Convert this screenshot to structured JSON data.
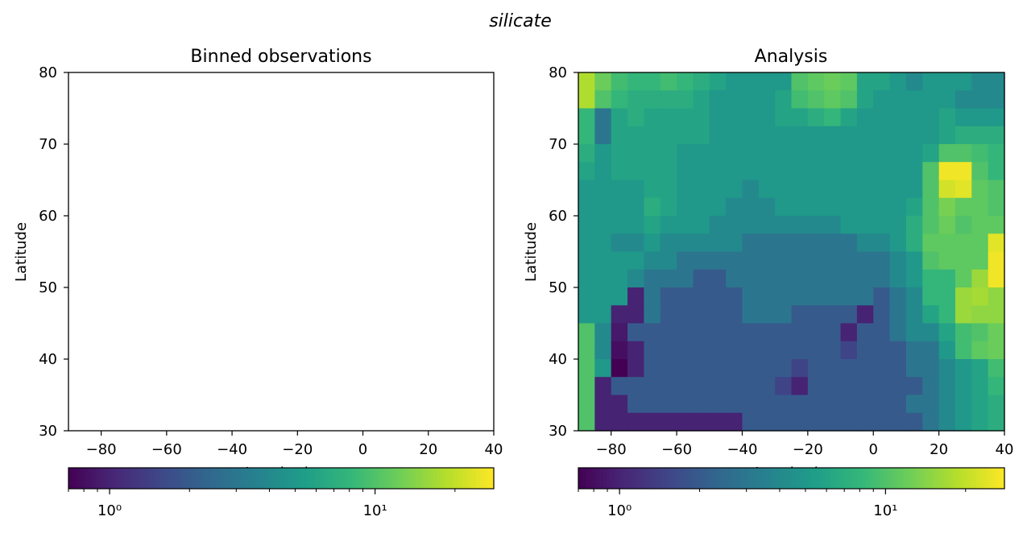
{
  "suptitle": "silicate",
  "colors": {
    "viridis": [
      "#440154",
      "#482878",
      "#3e4989",
      "#31688e",
      "#26828e",
      "#1f9e89",
      "#35b779",
      "#6ece58",
      "#b5de2b",
      "#fde725"
    ],
    "frame": "#000000"
  },
  "chart_data": [
    {
      "type": "heatmap",
      "title": "Binned observations",
      "xlabel": "Longitude",
      "ylabel": "Latitude",
      "xlim": [
        -90,
        40
      ],
      "ylim": [
        30,
        80
      ],
      "xticks": [
        -80,
        -60,
        -40,
        -20,
        0,
        20,
        40
      ],
      "xtick_labels": [
        "−80",
        "−60",
        "−40",
        "−20",
        "0",
        "20",
        "40"
      ],
      "yticks": [
        30,
        40,
        50,
        60,
        70,
        80
      ],
      "ytick_labels": [
        "30",
        "40",
        "50",
        "60",
        "70",
        "80"
      ],
      "empty": true,
      "colorbar": {
        "scale": "log",
        "cmap": "viridis",
        "range": [
          0.7,
          28
        ],
        "major_ticks": [
          1,
          10
        ],
        "tick_labels": [
          "10⁰",
          "10¹"
        ]
      }
    },
    {
      "type": "heatmap",
      "title": "Analysis",
      "xlabel": "Longitude",
      "ylabel": "Latitude",
      "xlim": [
        -90,
        40
      ],
      "ylim": [
        30,
        80
      ],
      "xticks": [
        -80,
        -60,
        -40,
        -20,
        0,
        20,
        40
      ],
      "xtick_labels": [
        "−80",
        "−60",
        "−40",
        "−20",
        "0",
        "20",
        "40"
      ],
      "yticks": [
        30,
        40,
        50,
        60,
        70,
        80
      ],
      "ytick_labels": [
        "30",
        "40",
        "50",
        "60",
        "70",
        "80"
      ],
      "grid_lon_centers": [
        -87.5,
        -82.5,
        -77.5,
        -72.5,
        -67.5,
        -62.5,
        -57.5,
        -52.5,
        -47.5,
        -42.5,
        -37.5,
        -32.5,
        -27.5,
        -22.5,
        -17.5,
        -12.5,
        -7.5,
        -2.5,
        2.5,
        7.5,
        12.5,
        17.5,
        22.5,
        27.5,
        32.5,
        37.5
      ],
      "grid_lat_centers": [
        78.75,
        76.25,
        73.75,
        71.25,
        68.75,
        66.25,
        63.75,
        61.25,
        58.75,
        56.25,
        53.75,
        51.25,
        48.75,
        46.25,
        43.75,
        41.25,
        38.75,
        36.25,
        33.75,
        31.25
      ],
      "z": [
        [
          18,
          12,
          9,
          8,
          8,
          9,
          8,
          7,
          6,
          5,
          5,
          5,
          5,
          10,
          11,
          12,
          11,
          6,
          6,
          5,
          4,
          5,
          5,
          5,
          4,
          4
        ],
        [
          18,
          10,
          8,
          7,
          7,
          7,
          7,
          6,
          5,
          5,
          5,
          5,
          6,
          9,
          10,
          11,
          10,
          6,
          5,
          5,
          5,
          5,
          5,
          4,
          4,
          4
        ],
        [
          8,
          3,
          6,
          7,
          6,
          6,
          6,
          6,
          5,
          5,
          5,
          5,
          6,
          6,
          7,
          8,
          6,
          5,
          5,
          5,
          5,
          5,
          6,
          5,
          5,
          5
        ],
        [
          8,
          3,
          6,
          6,
          6,
          6,
          6,
          6,
          5,
          5,
          5,
          5,
          5,
          5,
          5,
          5,
          5,
          5,
          5,
          5,
          5,
          5,
          6,
          7,
          7,
          7
        ],
        [
          7,
          5,
          6,
          6,
          6,
          6,
          5,
          5,
          5,
          5,
          5,
          5,
          5,
          5,
          5,
          5,
          5,
          5,
          5,
          5,
          5,
          6,
          10,
          10,
          9,
          8
        ],
        [
          6,
          5,
          6,
          6,
          6,
          6,
          5,
          5,
          5,
          5,
          5,
          5,
          5,
          5,
          5,
          5,
          5,
          5,
          5,
          5,
          5,
          10,
          26,
          26,
          10,
          8
        ],
        [
          5,
          5,
          5,
          5,
          6,
          6,
          5,
          5,
          5,
          5,
          4,
          5,
          5,
          5,
          5,
          5,
          5,
          5,
          5,
          5,
          5,
          10,
          22,
          24,
          11,
          10
        ],
        [
          5,
          5,
          5,
          5,
          7,
          6,
          5,
          5,
          5,
          4,
          4,
          4,
          5,
          5,
          5,
          5,
          5,
          5,
          5,
          5,
          6,
          10,
          13,
          11,
          11,
          10
        ],
        [
          5,
          5,
          5,
          5,
          6,
          5,
          5,
          5,
          4,
          4,
          4,
          4,
          4,
          4,
          4,
          4,
          5,
          5,
          5,
          5,
          7,
          10,
          12,
          10,
          11,
          11
        ],
        [
          5,
          5,
          4,
          4,
          5,
          4,
          4,
          4,
          4,
          4,
          3,
          3,
          3,
          3,
          3,
          3,
          3,
          4,
          4,
          5,
          7,
          11,
          11,
          11,
          11,
          24
        ],
        [
          5,
          5,
          5,
          5,
          4,
          4,
          3,
          3,
          3,
          3,
          3,
          3,
          3,
          3,
          3,
          3,
          3,
          3,
          3,
          4,
          5,
          10,
          11,
          11,
          11,
          26
        ],
        [
          5,
          5,
          5,
          4,
          3,
          3,
          3,
          2,
          2,
          3,
          3,
          3,
          3,
          3,
          3,
          3,
          3,
          3,
          3,
          4,
          5,
          8,
          8,
          11,
          16,
          26
        ],
        [
          5,
          5,
          5,
          1,
          3,
          2,
          2,
          2,
          2,
          2,
          3,
          3,
          3,
          3,
          3,
          3,
          3,
          3,
          2,
          3,
          4,
          8,
          8,
          16,
          17,
          15
        ],
        [
          5,
          5,
          1,
          1,
          3,
          2,
          2,
          2,
          2,
          2,
          3,
          3,
          3,
          2,
          2,
          2,
          2,
          1,
          2,
          3,
          4,
          6,
          8,
          16,
          15,
          15
        ],
        [
          10,
          4,
          0.9,
          2,
          2,
          2,
          2,
          2,
          2,
          2,
          2,
          2,
          2,
          2,
          2,
          2,
          1,
          2,
          2,
          3,
          4,
          4,
          6,
          9,
          10,
          12
        ],
        [
          10,
          4,
          0.8,
          1,
          2,
          2,
          2,
          2,
          2,
          2,
          2,
          2,
          2,
          2,
          2,
          2,
          1.5,
          2,
          2,
          2,
          3,
          3,
          5,
          9,
          11,
          12
        ],
        [
          10,
          5,
          0.7,
          1,
          2,
          2,
          2,
          2,
          2,
          2,
          2,
          2,
          2,
          1.5,
          2,
          2,
          2,
          2,
          2,
          2,
          3,
          3,
          4,
          5,
          6,
          9
        ],
        [
          10,
          1,
          2,
          2,
          2,
          2,
          2,
          2,
          2,
          2,
          2,
          2,
          1.5,
          1,
          2,
          2,
          2,
          2,
          2,
          2,
          2,
          3,
          4,
          5,
          6,
          8
        ],
        [
          10,
          1,
          1,
          2,
          2,
          2,
          2,
          2,
          2,
          2,
          2,
          2,
          2,
          2,
          2,
          2,
          2,
          2,
          2,
          2,
          3,
          3,
          4,
          5,
          6,
          7
        ],
        [
          10,
          1,
          1,
          1,
          1,
          1,
          1,
          1,
          1,
          1,
          2,
          2,
          2,
          2,
          2,
          2,
          2,
          2,
          2,
          2,
          2,
          3,
          4,
          5,
          6,
          7
        ]
      ],
      "colorbar": {
        "scale": "log",
        "cmap": "viridis",
        "range": [
          0.7,
          28
        ],
        "major_ticks": [
          1,
          10
        ],
        "tick_labels": [
          "10⁰",
          "10¹"
        ]
      }
    }
  ]
}
